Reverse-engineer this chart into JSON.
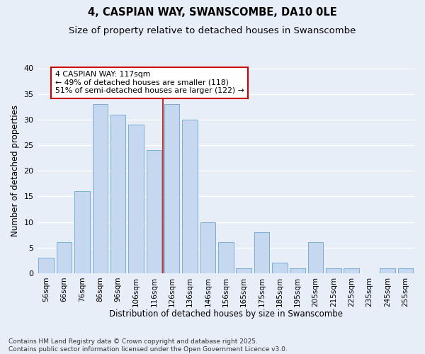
{
  "title": "4, CASPIAN WAY, SWANSCOMBE, DA10 0LE",
  "subtitle": "Size of property relative to detached houses in Swanscombe",
  "xlabel": "Distribution of detached houses by size in Swanscombe",
  "ylabel": "Number of detached properties",
  "categories": [
    "56sqm",
    "66sqm",
    "76sqm",
    "86sqm",
    "96sqm",
    "106sqm",
    "116sqm",
    "126sqm",
    "136sqm",
    "146sqm",
    "156sqm",
    "165sqm",
    "175sqm",
    "185sqm",
    "195sqm",
    "205sqm",
    "215sqm",
    "225sqm",
    "235sqm",
    "245sqm",
    "255sqm"
  ],
  "values": [
    3,
    6,
    16,
    33,
    31,
    29,
    24,
    33,
    30,
    10,
    6,
    1,
    8,
    2,
    1,
    6,
    1,
    1,
    0,
    1,
    1
  ],
  "bar_color": "#c5d8f0",
  "bar_edge_color": "#7aadd4",
  "vline_color": "#cc0000",
  "vline_x": 6.5,
  "background_color": "#e8eef8",
  "grid_color": "#ffffff",
  "ylim": [
    0,
    40
  ],
  "yticks": [
    0,
    5,
    10,
    15,
    20,
    25,
    30,
    35,
    40
  ],
  "annotation_line1": "4 CASPIAN WAY: 117sqm",
  "annotation_line2": "← 49% of detached houses are smaller (118)",
  "annotation_line3": "51% of semi-detached houses are larger (122) →",
  "annotation_box_color": "#ffffff",
  "annotation_box_edge": "#cc0000",
  "footnote_line1": "Contains HM Land Registry data © Crown copyright and database right 2025.",
  "footnote_line2": "Contains public sector information licensed under the Open Government Licence v3.0."
}
